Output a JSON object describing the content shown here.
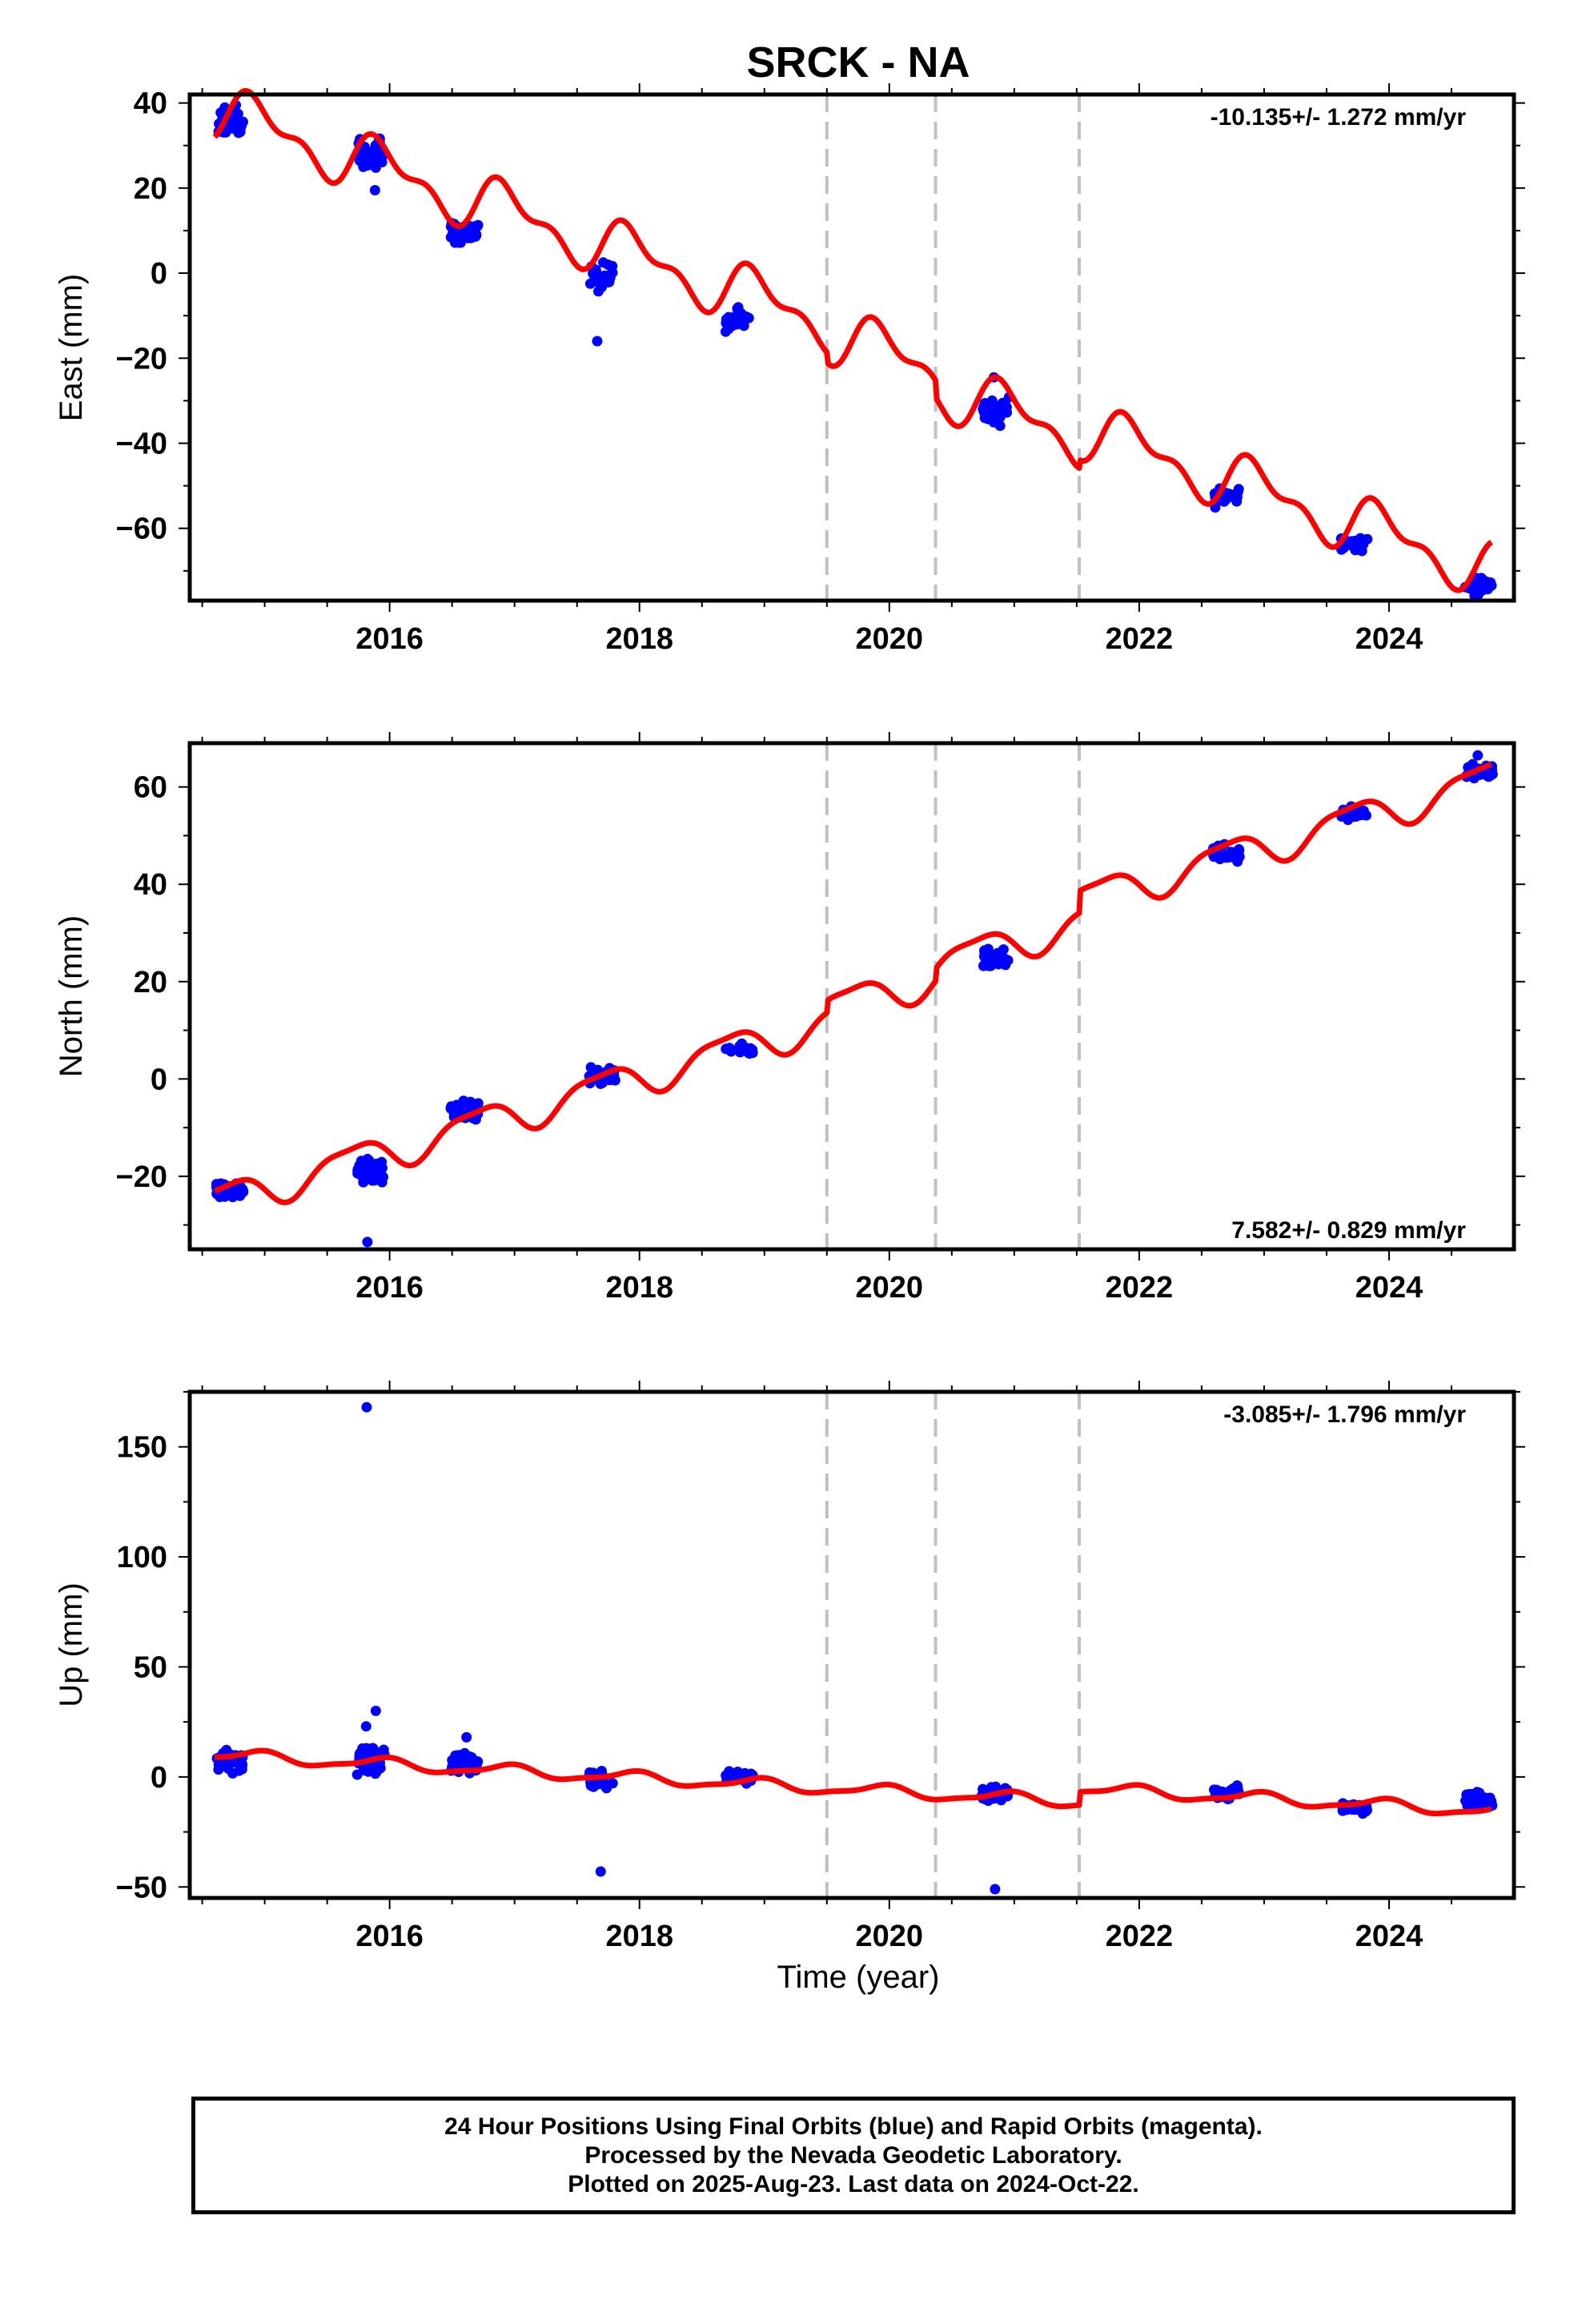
{
  "title": "SRCK - NA",
  "xlabel": "Time (year)",
  "x_tick_labels": [
    "2016",
    "2018",
    "2020",
    "2022",
    "2024"
  ],
  "footer": {
    "line1": "24 Hour Positions Using Final Orbits (blue) and Rapid Orbits (magenta).",
    "line2": "Processed by the Nevada Geodetic Laboratory.",
    "line3": "Plotted on 2025-Aug-23. Last data on 2024-Oct-22."
  },
  "colors": {
    "observations": "#0000ff",
    "model": "#ff0000",
    "event_lines": "#c0c0c0",
    "frame": "#000000"
  },
  "chart_data": [
    {
      "type": "scatter",
      "component": "east",
      "ylabel": "East (mm)",
      "xlim": [
        2014.4,
        2025.0
      ],
      "ylim": [
        -77,
        42
      ],
      "y_ticks": [
        40,
        20,
        0,
        -20,
        -40,
        -60
      ],
      "rate_text": "-10.135+/- 1.272 mm/yr",
      "rate_position": "top-right",
      "rate": -10.135,
      "annual": {
        "amp": 5.5,
        "phase": 0.3
      },
      "semiannual": {
        "amp": 3.0,
        "phase": 0.8
      },
      "offset_at_2014_6": 32,
      "steps": [
        {
          "x": 2019.5,
          "dy": -2.5
        },
        {
          "x": 2020.37,
          "dy": -4.0
        },
        {
          "x": 2021.52,
          "dy": 2.0
        }
      ],
      "events": [
        2019.5,
        2020.37,
        2021.52
      ],
      "observations": [
        {
          "x": 2014.72,
          "y": 35.5,
          "spread": 2.5,
          "n": 45,
          "outliers": [
            39.5
          ]
        },
        {
          "x": 2015.85,
          "y": 28.0,
          "spread": 2.5,
          "n": 45,
          "outliers": [
            19.5
          ]
        },
        {
          "x": 2016.6,
          "y": 9.5,
          "spread": 2.0,
          "n": 40,
          "outliers": []
        },
        {
          "x": 2017.7,
          "y": -0.5,
          "spread": 2.5,
          "n": 25,
          "outliers": [
            -16
          ]
        },
        {
          "x": 2018.8,
          "y": -10.5,
          "spread": 2.5,
          "n": 20,
          "outliers": []
        },
        {
          "x": 2020.85,
          "y": -32.5,
          "spread": 2.5,
          "n": 35,
          "outliers": [
            -24.5
          ]
        },
        {
          "x": 2022.7,
          "y": -52.5,
          "spread": 1.5,
          "n": 30,
          "outliers": []
        },
        {
          "x": 2023.72,
          "y": -63.5,
          "spread": 1.5,
          "n": 30,
          "outliers": []
        },
        {
          "x": 2024.72,
          "y": -73.5,
          "spread": 1.5,
          "n": 35,
          "outliers": []
        }
      ]
    },
    {
      "type": "scatter",
      "component": "north",
      "ylabel": "North (mm)",
      "xlim": [
        2014.4,
        2025.0
      ],
      "ylim": [
        -35,
        69
      ],
      "y_ticks": [
        60,
        40,
        20,
        0,
        -20
      ],
      "rate_text": "7.582+/- 0.829 mm/yr",
      "rate_position": "bottom-right",
      "rate": 7.582,
      "annual": {
        "amp": 3.5,
        "phase": 0.55
      },
      "semiannual": {
        "amp": 1.0,
        "phase": 0.2
      },
      "offset_at_2014_6": -23,
      "steps": [
        {
          "x": 2019.5,
          "dy": 2.5
        },
        {
          "x": 2020.37,
          "dy": 2.5
        },
        {
          "x": 2021.52,
          "dy": 4.5
        }
      ],
      "events": [
        2019.5,
        2020.37,
        2021.52
      ],
      "observations": [
        {
          "x": 2014.72,
          "y": -23.0,
          "spread": 1.5,
          "n": 45,
          "outliers": []
        },
        {
          "x": 2015.85,
          "y": -19.0,
          "spread": 2.0,
          "n": 45,
          "outliers": [
            -33.5
          ]
        },
        {
          "x": 2016.6,
          "y": -6.5,
          "spread": 1.5,
          "n": 45,
          "outliers": []
        },
        {
          "x": 2017.7,
          "y": 0.5,
          "spread": 1.5,
          "n": 25,
          "outliers": []
        },
        {
          "x": 2018.8,
          "y": 6.0,
          "spread": 1.0,
          "n": 20,
          "outliers": []
        },
        {
          "x": 2020.85,
          "y": 24.5,
          "spread": 1.5,
          "n": 35,
          "outliers": []
        },
        {
          "x": 2022.7,
          "y": 46.0,
          "spread": 1.5,
          "n": 30,
          "outliers": []
        },
        {
          "x": 2023.72,
          "y": 54.5,
          "spread": 1.0,
          "n": 30,
          "outliers": []
        },
        {
          "x": 2024.72,
          "y": 63.5,
          "spread": 1.5,
          "n": 35,
          "outliers": [
            66.5
          ]
        }
      ]
    },
    {
      "type": "scatter",
      "component": "up",
      "ylabel": "Up (mm)",
      "xlim": [
        2014.4,
        2025.0
      ],
      "ylim": [
        -55,
        175
      ],
      "y_ticks": [
        150,
        100,
        50,
        0,
        -50
      ],
      "rate_text": "-3.085+/- 1.796 mm/yr",
      "rate_position": "top-right",
      "rate": -3.085,
      "annual": {
        "amp": 2.5,
        "phase": 0.3
      },
      "semiannual": {
        "amp": 0.8,
        "phase": 0.6
      },
      "offset_at_2014_6": 9,
      "steps": [
        {
          "x": 2019.5,
          "dy": 0
        },
        {
          "x": 2020.37,
          "dy": 0
        },
        {
          "x": 2021.52,
          "dy": 6
        }
      ],
      "events": [
        2019.5,
        2020.37,
        2021.52
      ],
      "observations": [
        {
          "x": 2014.72,
          "y": 7.0,
          "spread": 4.0,
          "n": 45,
          "outliers": []
        },
        {
          "x": 2015.85,
          "y": 7.0,
          "spread": 5.0,
          "n": 45,
          "outliers": [
            168,
            30,
            23
          ]
        },
        {
          "x": 2016.6,
          "y": 6.0,
          "spread": 4.0,
          "n": 45,
          "outliers": [
            18
          ]
        },
        {
          "x": 2017.7,
          "y": -1.0,
          "spread": 3.5,
          "n": 25,
          "outliers": [
            -43
          ]
        },
        {
          "x": 2018.8,
          "y": 0.0,
          "spread": 2.0,
          "n": 20,
          "outliers": []
        },
        {
          "x": 2020.85,
          "y": -8.0,
          "spread": 3.0,
          "n": 35,
          "outliers": [
            -51
          ]
        },
        {
          "x": 2022.7,
          "y": -7.0,
          "spread": 2.5,
          "n": 30,
          "outliers": []
        },
        {
          "x": 2023.72,
          "y": -14.0,
          "spread": 2.0,
          "n": 30,
          "outliers": []
        },
        {
          "x": 2024.72,
          "y": -11.0,
          "spread": 3.0,
          "n": 35,
          "outliers": []
        }
      ]
    }
  ]
}
